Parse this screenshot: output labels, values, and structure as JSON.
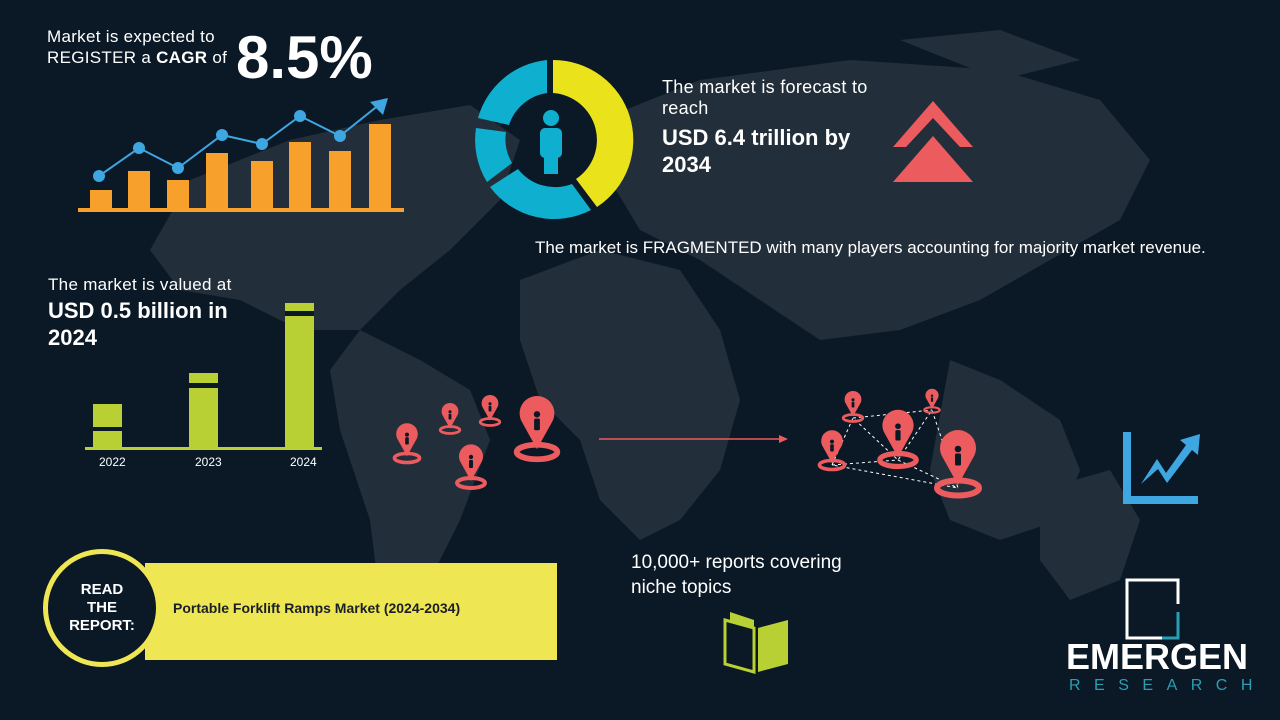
{
  "cagr": {
    "line1": "Market is expected to",
    "line2_prefix": "REGISTER a ",
    "line2_bold": "CAGR",
    "line2_suffix": " of",
    "value": "8.5%"
  },
  "forecast": {
    "intro": "The market is forecast to reach",
    "value": "USD 6.4 trillion by 2034"
  },
  "fragmented": {
    "text": "The market is FRAGMENTED with many players accounting for majority market revenue."
  },
  "valued": {
    "intro": "The market is valued at",
    "value": "USD 0.5 billion in 2024",
    "years": [
      "2022",
      "2023",
      "2024"
    ]
  },
  "reports": {
    "text": "10,000+ reports covering niche topics"
  },
  "read_report": {
    "label": "READ THE REPORT:",
    "title": "Portable Forklift Ramps Market (2024-2034)"
  },
  "logo": {
    "name": "EMERGEN",
    "sub": "RESEARCH"
  },
  "colors": {
    "background": "#0b1826",
    "map": "#222f3b",
    "orange": "#f7a02b",
    "blue": "#3ea6e0",
    "yellow": "#eae21b",
    "cyan": "#0fb0cf",
    "red": "#ec5b5e",
    "green": "#b8d033",
    "banner": "#eee652"
  },
  "icons": [
    "growth-bar-chart-icon",
    "donut-person-icon",
    "double-chevron-up-icon",
    "location-pin-icon",
    "trend-up-chart-icon",
    "open-book-icon",
    "emergen-logo-icon"
  ]
}
